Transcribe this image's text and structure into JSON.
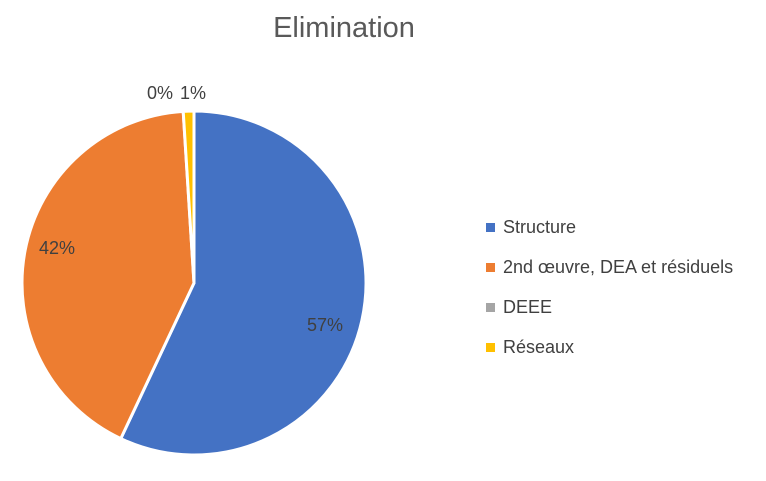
{
  "chart_data": {
    "type": "pie",
    "title": "Elimination",
    "categories": [
      "Structure",
      "2nd œuvre, DEA et résiduels",
      "DEEE",
      "Réseaux"
    ],
    "values": [
      57,
      42,
      0,
      1
    ],
    "data_labels": [
      "57%",
      "42%",
      "0%",
      "1%"
    ],
    "colors": [
      "#4472C4",
      "#ED7D31",
      "#A5A5A5",
      "#FFC000"
    ],
    "legend_position": "right"
  }
}
